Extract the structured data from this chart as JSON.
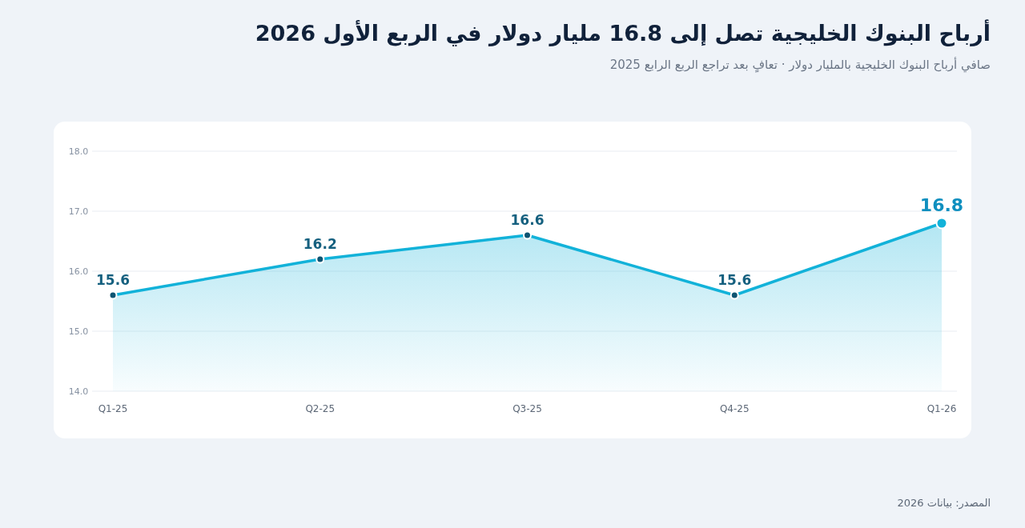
{
  "chart_data": {
    "type": "area",
    "title": "أرباح البنوك الخليجية تصل إلى 16.8 مليار دولار في الربع الأول 2026",
    "subtitle": "صافي أرباح البنوك الخليجية بالمليار دولار · تعافٍ بعد تراجع الربع الرابع 2025",
    "annotations": [
      "المصدر: بيانات 2026"
    ],
    "categories": [
      "Q1-25",
      "Q2-25",
      "Q3-25",
      "Q4-25",
      "Q1-26"
    ],
    "series": [
      {
        "color": "#12b2d9",
        "values": [
          15.6,
          16.2,
          16.6,
          15.6,
          16.8
        ]
      }
    ],
    "ylim": [
      14,
      18
    ],
    "yticks": [
      {
        "value": 14,
        "label": "14.0"
      },
      {
        "value": 15,
        "label": "15.0"
      },
      {
        "value": 16,
        "label": "16.0"
      },
      {
        "value": 17,
        "label": "17.0"
      },
      {
        "value": 18,
        "label": "18.0"
      }
    ],
    "grid": "y",
    "marker": "circle",
    "line_style": "solid",
    "data_labels": true
  }
}
